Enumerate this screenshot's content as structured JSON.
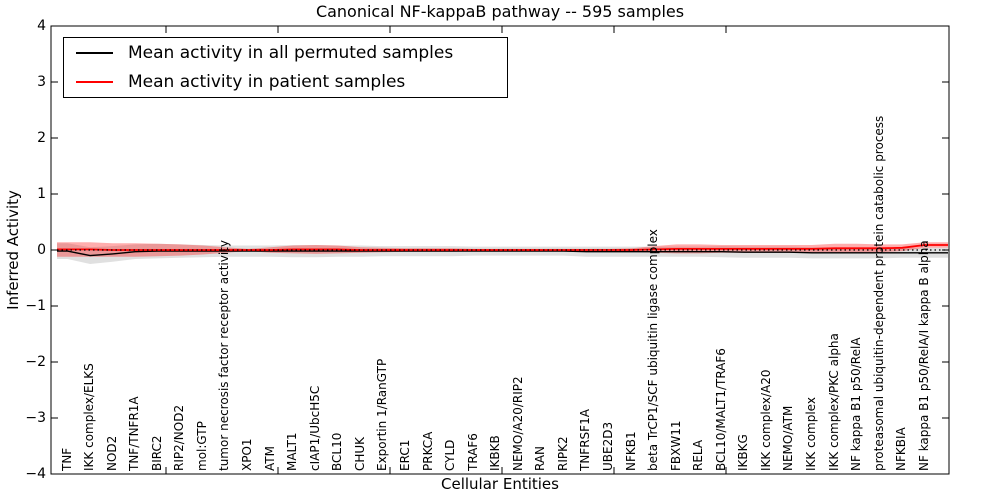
{
  "figure": {
    "background": "#ffffff",
    "accent_red": "#ff0000",
    "line_black": "#000000",
    "band_gray": "#999999",
    "band_red": "#ff0000"
  },
  "chart_data": {
    "type": "line",
    "title": "Canonical NF-kappaB pathway -- 595 samples",
    "xlabel": "Cellular Entities",
    "ylabel": "Inferred Activity",
    "ylim": [
      -4,
      4
    ],
    "yticks": [
      4,
      3,
      2,
      1,
      0,
      -1,
      -2,
      -3,
      -4
    ],
    "grid": false,
    "legend_position": "upper left",
    "zero_reference_line": "dotted black at y=0",
    "categories": [
      "TNF",
      "IKK complex/ELKS",
      "NOD2",
      "TNF/TNFR1A",
      "BIRC2",
      "RIP2/NOD2",
      "mol:GTP",
      "tumor necrosis factor receptor activity",
      "XPO1",
      "ATM",
      "MALT1",
      "cIAP1/UbcH5C",
      "BCL10",
      "CHUK",
      "Exportin 1/RanGTP",
      "ERC1",
      "PRKCA",
      "CYLD",
      "TRAF6",
      "IKBKB",
      "NEMO/A20/RIP2",
      "RAN",
      "RIPK2",
      "TNFRSF1A",
      "UBE2D3",
      "NFKB1",
      "beta TrCP1/SCF ubiquitin ligase complex",
      "FBXW11",
      "RELA",
      "BCL10/MALT1/TRAF6",
      "IKBKG",
      "IKK complex/A20",
      "NEMO/ATM",
      "IKK complex",
      "IKK complex/PKC alpha",
      "NF kappa B1 p50/RelA",
      "proteasomal ubiquitin-dependent protein catabolic process",
      "NFKBIA",
      "NF kappa B1 p50/RelA/I kappa B alpha"
    ],
    "series": [
      {
        "name": "Mean activity in all permuted samples",
        "color": "#000000",
        "band_color": "#999999",
        "values": [
          -0.02,
          -0.1,
          -0.07,
          -0.03,
          -0.02,
          -0.02,
          -0.02,
          -0.02,
          -0.02,
          -0.02,
          -0.02,
          -0.02,
          -0.02,
          -0.02,
          -0.02,
          -0.02,
          -0.02,
          -0.02,
          -0.02,
          -0.02,
          -0.02,
          -0.02,
          -0.02,
          -0.03,
          -0.03,
          -0.03,
          -0.03,
          -0.03,
          -0.03,
          -0.03,
          -0.04,
          -0.04,
          -0.04,
          -0.05,
          -0.05,
          -0.05,
          -0.05,
          -0.05,
          -0.05
        ],
        "band_halfwidth": [
          0.14,
          0.15,
          0.14,
          0.13,
          0.13,
          0.12,
          0.11,
          0.1,
          0.1,
          0.1,
          0.11,
          0.11,
          0.1,
          0.1,
          0.09,
          0.09,
          0.09,
          0.09,
          0.08,
          0.08,
          0.08,
          0.08,
          0.08,
          0.09,
          0.09,
          0.09,
          0.09,
          0.09,
          0.09,
          0.1,
          0.1,
          0.1,
          0.1,
          0.1,
          0.1,
          0.1,
          0.1,
          0.09,
          0.09
        ]
      },
      {
        "name": "Mean activity in patient samples",
        "color": "#ff0000",
        "band_color": "#ff0000",
        "values": [
          0.01,
          0.01,
          0.0,
          0.0,
          0.0,
          0.0,
          0.0,
          0.0,
          0.0,
          0.0,
          0.01,
          0.01,
          0.01,
          0.0,
          0.0,
          0.0,
          0.0,
          0.0,
          0.0,
          0.0,
          0.0,
          0.0,
          0.0,
          0.0,
          0.0,
          0.0,
          0.01,
          0.02,
          0.02,
          0.02,
          0.02,
          0.02,
          0.02,
          0.02,
          0.03,
          0.03,
          0.03,
          0.04,
          0.09
        ],
        "band_halfwidth": [
          0.13,
          0.13,
          0.12,
          0.12,
          0.11,
          0.1,
          0.08,
          0.05,
          0.02,
          0.05,
          0.07,
          0.08,
          0.07,
          0.05,
          0.04,
          0.03,
          0.03,
          0.03,
          0.02,
          0.02,
          0.02,
          0.02,
          0.02,
          0.02,
          0.02,
          0.03,
          0.06,
          0.08,
          0.08,
          0.07,
          0.07,
          0.07,
          0.07,
          0.07,
          0.08,
          0.08,
          0.07,
          0.06,
          0.05
        ]
      }
    ]
  }
}
